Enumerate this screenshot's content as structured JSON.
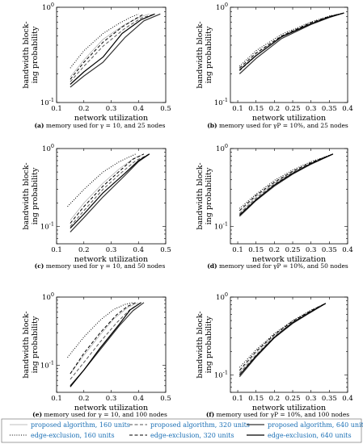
{
  "chart_data": [
    {
      "type": "line",
      "panel": "a",
      "caption_label": "(a)",
      "caption_text": "memory used for γ = 10, and 25 nodes",
      "xlabel": "network utilization",
      "ylabel": [
        "bandwidth block-",
        "ing probability"
      ],
      "xlim": [
        0.1,
        0.5
      ],
      "ylim": [
        0.1,
        1
      ],
      "yscale": "log",
      "xticks": [
        "0.1",
        "0.2",
        "0.3",
        "0.4",
        "0.5"
      ],
      "yticks": [
        "10^-1",
        "10^0"
      ],
      "series": [
        {
          "name": "proposed algorithm, 160 units",
          "x": [
            0.15,
            0.2,
            0.27,
            0.35,
            0.41,
            0.44
          ],
          "y": [
            0.185,
            0.28,
            0.46,
            0.66,
            0.8,
            0.85
          ]
        },
        {
          "name": "proposed algorithm, 320 units",
          "x": [
            0.15,
            0.2,
            0.27,
            0.35,
            0.41,
            0.46
          ],
          "y": [
            0.165,
            0.24,
            0.39,
            0.6,
            0.77,
            0.85
          ]
        },
        {
          "name": "proposed algorithm, 640 units",
          "x": [
            0.15,
            0.2,
            0.27,
            0.35,
            0.42,
            0.48
          ],
          "y": [
            0.145,
            0.19,
            0.265,
            0.48,
            0.72,
            0.85
          ]
        },
        {
          "name": "edge-exclusion, 160 units",
          "x": [
            0.15,
            0.2,
            0.27,
            0.33,
            0.37,
            0.4
          ],
          "y": [
            0.23,
            0.35,
            0.53,
            0.68,
            0.78,
            0.85
          ]
        },
        {
          "name": "edge-exclusion, 320 units",
          "x": [
            0.15,
            0.2,
            0.27,
            0.34,
            0.39,
            0.42
          ],
          "y": [
            0.175,
            0.265,
            0.43,
            0.62,
            0.76,
            0.85
          ]
        },
        {
          "name": "edge-exclusion, 640 units",
          "x": [
            0.15,
            0.2,
            0.27,
            0.34,
            0.41,
            0.46
          ],
          "y": [
            0.155,
            0.21,
            0.3,
            0.53,
            0.74,
            0.85
          ]
        }
      ]
    },
    {
      "type": "line",
      "panel": "b",
      "caption_label": "(b)",
      "caption_text": "memory used for γP = 10%, and 25 nodes",
      "xlabel": "network utilization",
      "ylabel": [
        "bandwidth block-",
        "ing probability"
      ],
      "xlim": [
        0.08,
        0.4
      ],
      "ylim": [
        0.1,
        1
      ],
      "yscale": "log",
      "xticks": [
        "0.1",
        "0.15",
        "0.2",
        "0.25",
        "0.3",
        "0.35",
        "0.4"
      ],
      "yticks": [
        "10^-1",
        "10^0"
      ],
      "series": [
        {
          "name": "proposed algorithm, 160 units",
          "x": [
            0.105,
            0.15,
            0.22,
            0.3,
            0.35,
            0.39
          ],
          "y": [
            0.22,
            0.32,
            0.5,
            0.68,
            0.8,
            0.87
          ]
        },
        {
          "name": "proposed algorithm, 320 units",
          "x": [
            0.105,
            0.15,
            0.22,
            0.3,
            0.35,
            0.39
          ],
          "y": [
            0.215,
            0.31,
            0.49,
            0.67,
            0.79,
            0.87
          ]
        },
        {
          "name": "proposed algorithm, 640 units",
          "x": [
            0.105,
            0.15,
            0.22,
            0.3,
            0.35,
            0.39
          ],
          "y": [
            0.2,
            0.29,
            0.47,
            0.66,
            0.78,
            0.87
          ]
        },
        {
          "name": "edge-exclusion, 160 units",
          "x": [
            0.105,
            0.15,
            0.22,
            0.3,
            0.35,
            0.39
          ],
          "y": [
            0.24,
            0.35,
            0.52,
            0.7,
            0.81,
            0.87
          ]
        },
        {
          "name": "edge-exclusion, 320 units",
          "x": [
            0.105,
            0.15,
            0.22,
            0.3,
            0.35,
            0.39
          ],
          "y": [
            0.23,
            0.33,
            0.5,
            0.69,
            0.8,
            0.87
          ]
        },
        {
          "name": "edge-exclusion, 640 units",
          "x": [
            0.105,
            0.15,
            0.22,
            0.3,
            0.35,
            0.39
          ],
          "y": [
            0.22,
            0.31,
            0.49,
            0.67,
            0.79,
            0.87
          ]
        }
      ]
    },
    {
      "type": "line",
      "panel": "c",
      "caption_label": "(c)",
      "caption_text": "memory used for γ = 10, and 50 nodes",
      "xlabel": "network utilization",
      "ylabel": [
        "bandwidth block-",
        "ing probability"
      ],
      "xlim": [
        0.1,
        0.5
      ],
      "ylim": [
        0.06,
        1
      ],
      "yscale": "log",
      "xticks": [
        "0.1",
        "0.2",
        "0.3",
        "0.4",
        "0.5"
      ],
      "yticks": [
        "10^-1",
        "10^0"
      ],
      "series": [
        {
          "name": "proposed algorithm, 160 units",
          "x": [
            0.15,
            0.2,
            0.27,
            0.33,
            0.38,
            0.42
          ],
          "y": [
            0.12,
            0.2,
            0.36,
            0.55,
            0.74,
            0.85
          ]
        },
        {
          "name": "proposed algorithm, 320 units",
          "x": [
            0.15,
            0.2,
            0.27,
            0.34,
            0.39,
            0.44
          ],
          "y": [
            0.1,
            0.16,
            0.3,
            0.5,
            0.7,
            0.85
          ]
        },
        {
          "name": "proposed algorithm, 640 units",
          "x": [
            0.15,
            0.2,
            0.27,
            0.35,
            0.4,
            0.44
          ],
          "y": [
            0.085,
            0.13,
            0.24,
            0.45,
            0.68,
            0.85
          ]
        },
        {
          "name": "edge-exclusion, 160 units",
          "x": [
            0.14,
            0.2,
            0.27,
            0.33,
            0.37,
            0.39
          ],
          "y": [
            0.18,
            0.3,
            0.5,
            0.68,
            0.79,
            0.85
          ]
        },
        {
          "name": "edge-exclusion, 320 units",
          "x": [
            0.15,
            0.2,
            0.27,
            0.34,
            0.38,
            0.42
          ],
          "y": [
            0.11,
            0.18,
            0.33,
            0.55,
            0.73,
            0.85
          ]
        },
        {
          "name": "edge-exclusion, 640 units",
          "x": [
            0.15,
            0.2,
            0.27,
            0.35,
            0.4,
            0.44
          ],
          "y": [
            0.095,
            0.145,
            0.27,
            0.48,
            0.7,
            0.85
          ]
        }
      ]
    },
    {
      "type": "line",
      "panel": "d",
      "caption_label": "(d)",
      "caption_text": "memory used for γP = 10%, and 50 nodes",
      "xlabel": "network utilization",
      "ylabel": [
        "bandwidth block-",
        "ing probability"
      ],
      "xlim": [
        0.08,
        0.4
      ],
      "ylim": [
        0.06,
        1
      ],
      "yscale": "log",
      "xticks": [
        "0.1",
        "0.15",
        "0.2",
        "0.25",
        "0.3",
        "0.35",
        "0.4"
      ],
      "yticks": [
        "10^-1",
        "10^0"
      ],
      "series": [
        {
          "name": "proposed algorithm, 160 units",
          "x": [
            0.105,
            0.15,
            0.2,
            0.25,
            0.3,
            0.36
          ],
          "y": [
            0.15,
            0.24,
            0.36,
            0.5,
            0.65,
            0.85
          ]
        },
        {
          "name": "proposed algorithm, 320 units",
          "x": [
            0.105,
            0.15,
            0.2,
            0.25,
            0.3,
            0.36
          ],
          "y": [
            0.145,
            0.23,
            0.35,
            0.49,
            0.64,
            0.85
          ]
        },
        {
          "name": "proposed algorithm, 640 units",
          "x": [
            0.105,
            0.15,
            0.2,
            0.25,
            0.3,
            0.36
          ],
          "y": [
            0.135,
            0.215,
            0.33,
            0.47,
            0.63,
            0.85
          ]
        },
        {
          "name": "edge-exclusion, 160 units",
          "x": [
            0.105,
            0.15,
            0.2,
            0.25,
            0.3,
            0.36
          ],
          "y": [
            0.17,
            0.26,
            0.39,
            0.53,
            0.68,
            0.85
          ]
        },
        {
          "name": "edge-exclusion, 320 units",
          "x": [
            0.105,
            0.15,
            0.2,
            0.25,
            0.3,
            0.36
          ],
          "y": [
            0.16,
            0.25,
            0.37,
            0.51,
            0.66,
            0.85
          ]
        },
        {
          "name": "edge-exclusion, 640 units",
          "x": [
            0.105,
            0.15,
            0.2,
            0.25,
            0.3,
            0.36
          ],
          "y": [
            0.14,
            0.22,
            0.34,
            0.48,
            0.64,
            0.85
          ]
        }
      ]
    },
    {
      "type": "line",
      "panel": "e",
      "caption_label": "(e)",
      "caption_text": "memory used for γ = 10, and 100 nodes",
      "xlabel": "network utilization",
      "ylabel": [
        "bandwidth block-",
        "ing probability"
      ],
      "xlim": [
        0.1,
        0.5
      ],
      "ylim": [
        0.04,
        1
      ],
      "yscale": "log",
      "xticks": [
        "0.1",
        "0.2",
        "0.3",
        "0.4",
        "0.5"
      ],
      "yticks": [
        "10^-1",
        "10^0"
      ],
      "series": [
        {
          "name": "proposed algorithm, 160 units",
          "x": [
            0.15,
            0.2,
            0.26,
            0.31,
            0.36,
            0.4
          ],
          "y": [
            0.075,
            0.14,
            0.28,
            0.48,
            0.7,
            0.83
          ]
        },
        {
          "name": "proposed algorithm, 320 units",
          "x": [
            0.15,
            0.2,
            0.26,
            0.32,
            0.37,
            0.41
          ],
          "y": [
            0.062,
            0.11,
            0.22,
            0.42,
            0.66,
            0.83
          ]
        },
        {
          "name": "proposed algorithm, 640 units",
          "x": [
            0.15,
            0.2,
            0.26,
            0.33,
            0.38,
            0.42
          ],
          "y": [
            0.05,
            0.085,
            0.17,
            0.38,
            0.63,
            0.83
          ]
        },
        {
          "name": "edge-exclusion, 160 units",
          "x": [
            0.14,
            0.2,
            0.26,
            0.31,
            0.35,
            0.38
          ],
          "y": [
            0.13,
            0.26,
            0.46,
            0.66,
            0.78,
            0.83
          ]
        },
        {
          "name": "edge-exclusion, 320 units",
          "x": [
            0.15,
            0.2,
            0.26,
            0.32,
            0.36,
            0.39
          ],
          "y": [
            0.075,
            0.15,
            0.3,
            0.55,
            0.73,
            0.83
          ]
        },
        {
          "name": "edge-exclusion, 640 units",
          "x": [
            0.15,
            0.2,
            0.26,
            0.33,
            0.37,
            0.41
          ],
          "y": [
            0.048,
            0.085,
            0.18,
            0.4,
            0.65,
            0.83
          ]
        }
      ]
    },
    {
      "type": "line",
      "panel": "f",
      "caption_label": "(f)",
      "caption_text": "memory used for γP = 10%, and 100 nodes",
      "xlabel": "network utilization",
      "ylabel": [
        "bandwidth block-",
        "ing probability"
      ],
      "xlim": [
        0.08,
        0.4
      ],
      "ylim": [
        0.06,
        1
      ],
      "yscale": "log",
      "xticks": [
        "0.1",
        "0.15",
        "0.2",
        "0.25",
        "0.3",
        "0.35",
        "0.4"
      ],
      "yticks": [
        "10^-1",
        "10^0"
      ],
      "series": [
        {
          "name": "proposed algorithm, 160 units",
          "x": [
            0.105,
            0.15,
            0.2,
            0.25,
            0.3,
            0.34
          ],
          "y": [
            0.11,
            0.19,
            0.32,
            0.48,
            0.66,
            0.83
          ]
        },
        {
          "name": "proposed algorithm, 320 units",
          "x": [
            0.105,
            0.15,
            0.2,
            0.25,
            0.3,
            0.34
          ],
          "y": [
            0.105,
            0.18,
            0.31,
            0.47,
            0.65,
            0.83
          ]
        },
        {
          "name": "proposed algorithm, 640 units",
          "x": [
            0.105,
            0.15,
            0.2,
            0.25,
            0.3,
            0.34
          ],
          "y": [
            0.095,
            0.17,
            0.3,
            0.46,
            0.64,
            0.83
          ]
        },
        {
          "name": "edge-exclusion, 160 units",
          "x": [
            0.105,
            0.15,
            0.2,
            0.25,
            0.3,
            0.34
          ],
          "y": [
            0.125,
            0.21,
            0.34,
            0.5,
            0.68,
            0.83
          ]
        },
        {
          "name": "edge-exclusion, 320 units",
          "x": [
            0.105,
            0.15,
            0.2,
            0.25,
            0.3,
            0.34
          ],
          "y": [
            0.115,
            0.2,
            0.33,
            0.49,
            0.67,
            0.83
          ]
        },
        {
          "name": "edge-exclusion, 640 units",
          "x": [
            0.105,
            0.15,
            0.2,
            0.25,
            0.3,
            0.34
          ],
          "y": [
            0.1,
            0.175,
            0.305,
            0.47,
            0.65,
            0.83
          ]
        }
      ]
    }
  ],
  "legend": {
    "position": "bottom",
    "entries": [
      {
        "label": "proposed algorithm, 160 units",
        "style": "thin-solid",
        "color": "#aaaaaa"
      },
      {
        "label": "proposed algorithm, 320 units",
        "style": "dashed",
        "color": "#555555"
      },
      {
        "label": "proposed algorithm, 640 units",
        "style": "solid",
        "color": "#333333"
      },
      {
        "label": "edge-exclusion, 160 units",
        "style": "dotted",
        "color": "#000000"
      },
      {
        "label": "edge-exclusion, 320 units",
        "style": "dashed",
        "color": "#000000"
      },
      {
        "label": "edge-exclusion, 640 units",
        "style": "solid",
        "color": "#000000"
      }
    ],
    "label_color": "#1a6fb5"
  }
}
